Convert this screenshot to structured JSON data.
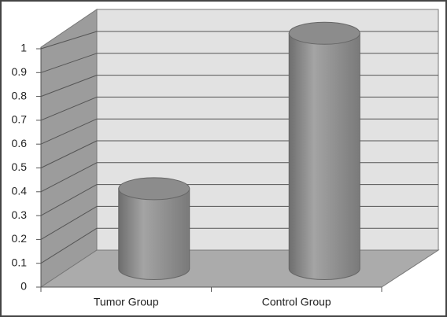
{
  "chart_data": {
    "type": "bar",
    "categories": [
      "Tumor Group",
      "Control Group"
    ],
    "values": [
      0.35,
      1.03
    ],
    "color": "#8c8c8c",
    "ylim": [
      0,
      1
    ],
    "yticks": [
      0,
      0.1,
      0.2,
      0.3,
      0.4,
      0.5,
      0.6,
      0.7,
      0.8,
      0.9,
      1
    ],
    "grid": true
  }
}
